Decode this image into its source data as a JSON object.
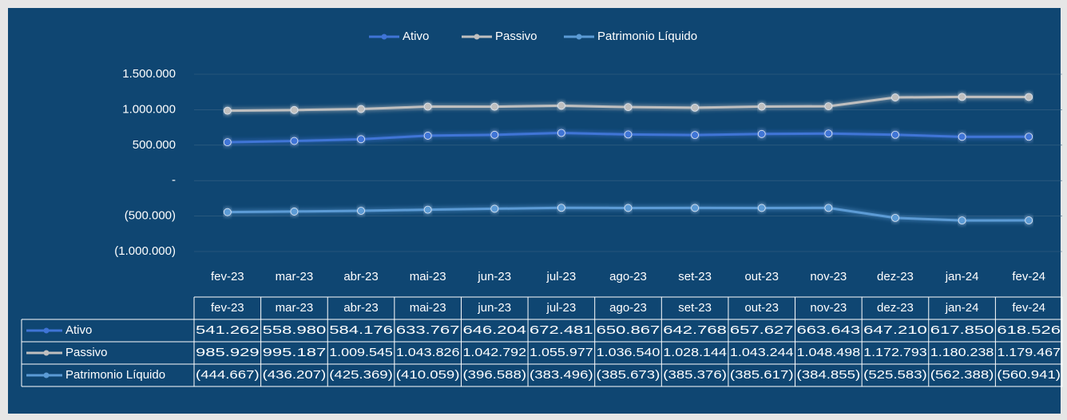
{
  "chart_data": {
    "type": "line",
    "categories": [
      "fev-23",
      "mar-23",
      "abr-23",
      "mai-23",
      "jun-23",
      "jul-23",
      "ago-23",
      "set-23",
      "out-23",
      "nov-23",
      "dez-23",
      "jan-24",
      "fev-24"
    ],
    "series": [
      {
        "name": "Ativo",
        "color": "#3f74d6",
        "values": [
          541262,
          558980,
          584176,
          633767,
          646204,
          672481,
          650867,
          642768,
          657627,
          663643,
          647210,
          617850,
          618526
        ],
        "value_labels": [
          "541.262",
          "558.980",
          "584.176",
          "633.767",
          "646.204",
          "672.481",
          "650.867",
          "642.768",
          "657.627",
          "663.643",
          "647.210",
          "617.850",
          "618.526"
        ]
      },
      {
        "name": "Passivo",
        "color": "#bfbfbf",
        "values": [
          985929,
          995187,
          1009545,
          1043826,
          1042792,
          1055977,
          1036540,
          1028144,
          1043244,
          1048498,
          1172793,
          1180238,
          1179467
        ],
        "value_labels": [
          "985.929",
          "995.187",
          "1.009.545",
          "1.043.826",
          "1.042.792",
          "1.055.977",
          "1.036.540",
          "1.028.144",
          "1.043.244",
          "1.048.498",
          "1.172.793",
          "1.180.238",
          "1.179.467"
        ]
      },
      {
        "name": "Patrimonio Líquido",
        "color": "#5b9bd5",
        "values": [
          -444667,
          -436207,
          -425369,
          -410059,
          -396588,
          -383496,
          -385673,
          -385376,
          -385617,
          -384855,
          -525583,
          -562388,
          -560941
        ],
        "value_labels": [
          "(444.667)",
          "(436.207)",
          "(425.369)",
          "(410.059)",
          "(396.588)",
          "(383.496)",
          "(385.673)",
          "(385.376)",
          "(385.617)",
          "(384.855)",
          "(525.583)",
          "(562.388)",
          "(560.941)"
        ]
      }
    ],
    "ylim": [
      -1000000,
      1500000
    ],
    "yticks": [
      {
        "value": 1500000,
        "label": "1.500.000"
      },
      {
        "value": 1000000,
        "label": "1.000.000"
      },
      {
        "value": 500000,
        "label": "500.000"
      },
      {
        "value": 0,
        "label": "-"
      },
      {
        "value": -500000,
        "label": "(500.000)"
      },
      {
        "value": -1000000,
        "label": "(1.000.000)"
      }
    ],
    "grid": true,
    "legend": "top"
  }
}
